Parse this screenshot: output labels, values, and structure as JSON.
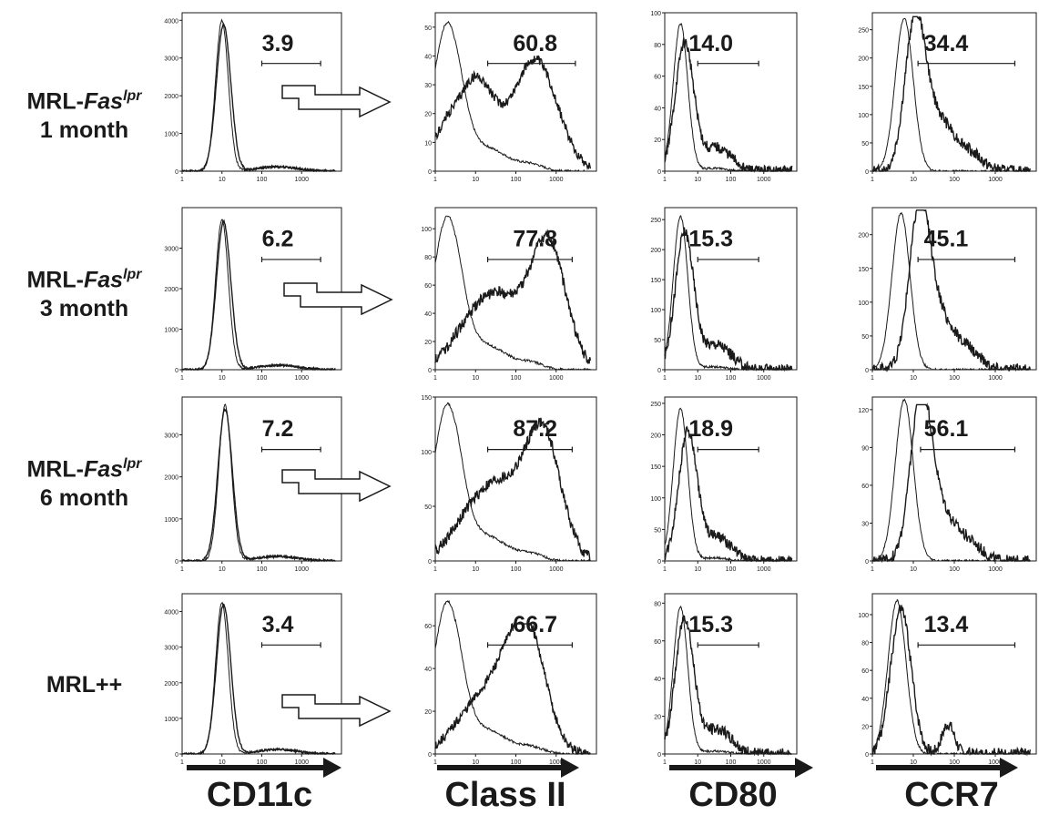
{
  "figure": {
    "colors": {
      "ink": "#1a1a1a",
      "background": "#ffffff"
    },
    "rows": [
      {
        "label_prefix": "MRL-",
        "label_gene": "Fas",
        "label_sup": "lpr",
        "label_line2": "1 month"
      },
      {
        "label_prefix": "MRL-",
        "label_gene": "Fas",
        "label_sup": "lpr",
        "label_line2": "3 month"
      },
      {
        "label_prefix": "MRL-",
        "label_gene": "Fas",
        "label_sup": "lpr",
        "label_line2": "6 month"
      },
      {
        "label_prefix": "MRL++",
        "label_gene": "",
        "label_sup": "",
        "label_line2": ""
      }
    ],
    "columns": [
      "CD11c",
      "Class II",
      "CD80",
      "CCR7"
    ],
    "x_axis": {
      "scale": "log",
      "range": [
        1,
        10000
      ],
      "ticks": [
        "1",
        "10",
        "100",
        "1000"
      ]
    }
  },
  "chart_data": [
    {
      "type": "area",
      "panel": "CD11c / MRL-Faslpr 1 month",
      "ylim": [
        0,
        4200
      ],
      "yticks": [
        0,
        1000,
        2000,
        3000,
        4000
      ],
      "gate_percent": "3.9",
      "gate_range": [
        100,
        3000
      ],
      "series": [
        {
          "name": "",
          "peak_x": 10,
          "peak_y": 4000
        },
        {
          "name": "",
          "peak_x": 11,
          "peak_y": 3900
        }
      ]
    },
    {
      "type": "area",
      "panel": "Class II / MRL-Faslpr 1 month",
      "ylim": [
        0,
        55
      ],
      "yticks": [
        0,
        10,
        20,
        30,
        40,
        50
      ],
      "gate_percent": "60.8",
      "gate_range": [
        20,
        3000
      ],
      "series": [
        {
          "name": "",
          "peak_x": 2,
          "peak_y": 52
        },
        {
          "name": "",
          "peak_x": 300,
          "peak_y": 42
        }
      ]
    },
    {
      "type": "area",
      "panel": "CD80 / MRL-Faslpr 1 month",
      "ylim": [
        0,
        100
      ],
      "yticks": [
        0,
        20,
        40,
        60,
        80,
        100
      ],
      "gate_percent": "14.0",
      "gate_range": [
        10,
        700
      ],
      "series": [
        {
          "name": "",
          "peak_x": 3,
          "peak_y": 93
        },
        {
          "name": "",
          "peak_x": 4,
          "peak_y": 85
        }
      ]
    },
    {
      "type": "area",
      "panel": "CCR7 / MRL-Faslpr 1 month",
      "ylim": [
        0,
        280
      ],
      "yticks": [
        0,
        50,
        100,
        150,
        200,
        250
      ],
      "gate_percent": "34.4",
      "gate_range": [
        13,
        3000
      ],
      "series": [
        {
          "name": "",
          "peak_x": 6,
          "peak_y": 270
        },
        {
          "name": "",
          "peak_x": 11,
          "peak_y": 260
        }
      ]
    },
    {
      "type": "area",
      "panel": "CD11c / MRL-Faslpr 3 month",
      "ylim": [
        0,
        4000
      ],
      "yticks": [
        0,
        1000,
        2000,
        3000
      ],
      "gate_percent": "6.2",
      "gate_range": [
        100,
        3000
      ],
      "series": [
        {
          "name": "",
          "peak_x": 10,
          "peak_y": 3700
        },
        {
          "name": "",
          "peak_x": 11,
          "peak_y": 3650
        }
      ]
    },
    {
      "type": "area",
      "panel": "Class II / MRL-Faslpr 3 month",
      "ylim": [
        0,
        115
      ],
      "yticks": [
        0,
        20,
        40,
        60,
        80,
        100
      ],
      "gate_percent": "77.8",
      "gate_range": [
        20,
        2500
      ],
      "series": [
        {
          "name": "",
          "peak_x": 2,
          "peak_y": 110
        },
        {
          "name": "",
          "peak_x": 600,
          "peak_y": 100
        }
      ]
    },
    {
      "type": "area",
      "panel": "CD80 / MRL-Faslpr 3 month",
      "ylim": [
        0,
        270
      ],
      "yticks": [
        0,
        50,
        100,
        150,
        200,
        250
      ],
      "gate_percent": "15.3",
      "gate_range": [
        10,
        700
      ],
      "series": [
        {
          "name": "",
          "peak_x": 3,
          "peak_y": 255
        },
        {
          "name": "",
          "peak_x": 4,
          "peak_y": 240
        }
      ]
    },
    {
      "type": "area",
      "panel": "CCR7 / MRL-Faslpr 3 month",
      "ylim": [
        0,
        240
      ],
      "yticks": [
        0,
        50,
        100,
        150,
        200
      ],
      "gate_percent": "45.1",
      "gate_range": [
        13,
        3000
      ],
      "series": [
        {
          "name": "",
          "peak_x": 5,
          "peak_y": 232
        },
        {
          "name": "",
          "peak_x": 14,
          "peak_y": 225
        }
      ]
    },
    {
      "type": "area",
      "panel": "CD11c / MRL-Faslpr 6 month",
      "ylim": [
        0,
        3900
      ],
      "yticks": [
        0,
        1000,
        2000,
        3000
      ],
      "gate_percent": "7.2",
      "gate_range": [
        100,
        3000
      ],
      "series": [
        {
          "name": "",
          "peak_x": 12,
          "peak_y": 3700
        },
        {
          "name": "",
          "peak_x": 12,
          "peak_y": 3600
        }
      ]
    },
    {
      "type": "area",
      "panel": "Class II / MRL-Faslpr 6 month",
      "ylim": [
        0,
        150
      ],
      "yticks": [
        0,
        50,
        100,
        150
      ],
      "gate_percent": "87.2",
      "gate_range": [
        20,
        2500
      ],
      "series": [
        {
          "name": "",
          "peak_x": 2,
          "peak_y": 145
        },
        {
          "name": "",
          "peak_x": 450,
          "peak_y": 130
        }
      ]
    },
    {
      "type": "area",
      "panel": "CD80 / MRL-Faslpr 6 month",
      "ylim": [
        0,
        260
      ],
      "yticks": [
        0,
        50,
        100,
        150,
        200,
        250
      ],
      "gate_percent": "18.9",
      "gate_range": [
        10,
        700
      ],
      "series": [
        {
          "name": "",
          "peak_x": 3,
          "peak_y": 242
        },
        {
          "name": "",
          "peak_x": 5,
          "peak_y": 215
        }
      ]
    },
    {
      "type": "area",
      "panel": "CCR7 / MRL-Faslpr 6 month",
      "ylim": [
        0,
        130
      ],
      "yticks": [
        0,
        30,
        60,
        90,
        120
      ],
      "gate_percent": "56.1",
      "gate_range": [
        15,
        3000
      ],
      "series": [
        {
          "name": "",
          "peak_x": 6,
          "peak_y": 128
        },
        {
          "name": "",
          "peak_x": 15,
          "peak_y": 118
        }
      ]
    },
    {
      "type": "area",
      "panel": "CD11c / MRL++",
      "ylim": [
        0,
        4500
      ],
      "yticks": [
        0,
        1000,
        2000,
        3000,
        4000
      ],
      "gate_percent": "3.4",
      "gate_range": [
        100,
        3000
      ],
      "series": [
        {
          "name": "",
          "peak_x": 10,
          "peak_y": 4250
        },
        {
          "name": "",
          "peak_x": 11,
          "peak_y": 4200
        }
      ]
    },
    {
      "type": "area",
      "panel": "Class II / MRL++",
      "ylim": [
        0,
        75
      ],
      "yticks": [
        0,
        20,
        40,
        60
      ],
      "gate_percent": "66.7",
      "gate_range": [
        20,
        2500
      ],
      "series": [
        {
          "name": "",
          "peak_x": 2,
          "peak_y": 72
        },
        {
          "name": "",
          "peak_x": 200,
          "peak_y": 58
        }
      ]
    },
    {
      "type": "area",
      "panel": "CD80 / MRL++",
      "ylim": [
        0,
        85
      ],
      "yticks": [
        0,
        20,
        40,
        60,
        80
      ],
      "gate_percent": "15.3",
      "gate_range": [
        10,
        700
      ],
      "series": [
        {
          "name": "",
          "peak_x": 3,
          "peak_y": 78
        },
        {
          "name": "",
          "peak_x": 4,
          "peak_y": 76
        }
      ]
    },
    {
      "type": "area",
      "panel": "CCR7 / MRL++",
      "ylim": [
        0,
        115
      ],
      "yticks": [
        0,
        20,
        40,
        60,
        80,
        100
      ],
      "gate_percent": "13.4",
      "gate_range": [
        13,
        3000
      ],
      "series": [
        {
          "name": "",
          "peak_x": 4,
          "peak_y": 110
        },
        {
          "name": "",
          "peak_x": 5,
          "peak_y": 108
        }
      ]
    }
  ]
}
